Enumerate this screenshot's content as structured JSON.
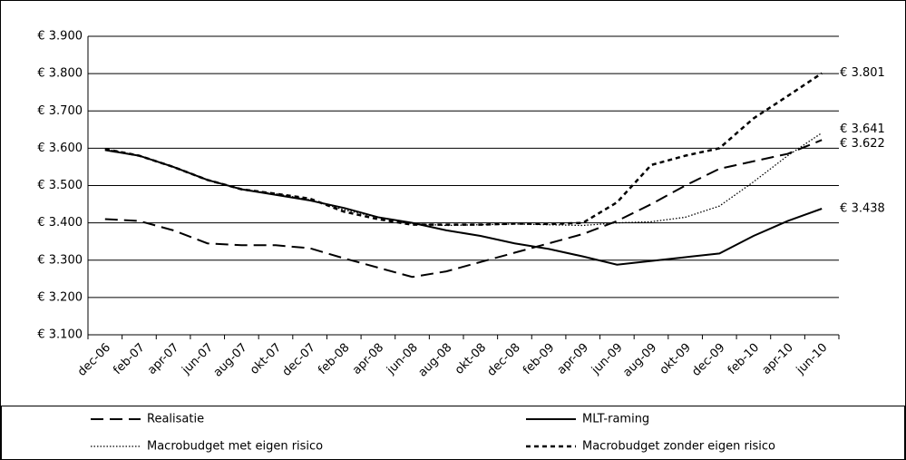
{
  "chart_data": {
    "type": "line",
    "categories": [
      "dec-06",
      "feb-07",
      "apr-07",
      "jun-07",
      "aug-07",
      "okt-07",
      "dec-07",
      "feb-08",
      "apr-08",
      "jun-08",
      "aug-08",
      "okt-08",
      "dec-08",
      "feb-09",
      "apr-09",
      "jun-09",
      "aug-09",
      "okt-09",
      "dec-09",
      "feb-10",
      "apr-10",
      "jun-10"
    ],
    "series": [
      {
        "name": "Realisatie",
        "color": "#000000",
        "dash": "long-dash",
        "values": [
          3410,
          3405,
          3380,
          3345,
          3340,
          3340,
          3332,
          3305,
          3280,
          3255,
          3270,
          3295,
          3320,
          3345,
          3370,
          3405,
          3450,
          3500,
          3545,
          3565,
          3585,
          3622
        ],
        "value_labels": [
          null,
          null,
          null,
          null,
          null,
          null,
          null,
          null,
          null,
          null,
          null,
          null,
          null,
          null,
          null,
          null,
          null,
          null,
          null,
          null,
          null,
          "€ 3.622"
        ]
      },
      {
        "name": "MLT-raming",
        "color": "#000000",
        "dash": "solid",
        "values": [
          3595,
          3580,
          3550,
          3515,
          3490,
          3475,
          3460,
          3440,
          3415,
          3400,
          3380,
          3365,
          3345,
          3330,
          3310,
          3288,
          3298,
          3308,
          3318,
          3365,
          3405,
          3438
        ],
        "value_labels": [
          null,
          null,
          null,
          null,
          null,
          null,
          null,
          null,
          null,
          null,
          null,
          null,
          null,
          null,
          null,
          null,
          null,
          null,
          null,
          null,
          null,
          "€ 3.438"
        ]
      },
      {
        "name": "Macrobudget met eigen risico",
        "color": "#000000",
        "dash": "dotted",
        "values": [
          3598,
          3580,
          3550,
          3515,
          3490,
          3478,
          3462,
          3435,
          3415,
          3398,
          3393,
          3395,
          3397,
          3395,
          3393,
          3400,
          3403,
          3415,
          3445,
          3510,
          3580,
          3641
        ],
        "value_labels": [
          null,
          null,
          null,
          null,
          null,
          null,
          null,
          null,
          null,
          null,
          null,
          null,
          null,
          null,
          null,
          null,
          null,
          null,
          null,
          null,
          null,
          "€ 3.641"
        ]
      },
      {
        "name": "Macrobudget zonder eigen risico",
        "color": "#000000",
        "dash": "short-dash",
        "values": [
          3598,
          3580,
          3550,
          3515,
          3490,
          3478,
          3465,
          3430,
          3410,
          3395,
          3395,
          3395,
          3398,
          3397,
          3400,
          3455,
          3555,
          3580,
          3600,
          3680,
          3740,
          3801
        ],
        "value_labels": [
          null,
          null,
          null,
          null,
          null,
          null,
          null,
          null,
          null,
          null,
          null,
          null,
          null,
          null,
          null,
          null,
          null,
          null,
          null,
          null,
          null,
          "€ 3.801"
        ]
      }
    ],
    "ylim": [
      3100,
      3900
    ],
    "yticks": [
      {
        "value": 3100,
        "label": "€ 3.100"
      },
      {
        "value": 3200,
        "label": "€ 3.200"
      },
      {
        "value": 3300,
        "label": "€ 3.300"
      },
      {
        "value": 3400,
        "label": "€ 3.400"
      },
      {
        "value": 3500,
        "label": "€ 3.500"
      },
      {
        "value": 3600,
        "label": "€ 3.600"
      },
      {
        "value": 3700,
        "label": "€ 3.700"
      },
      {
        "value": 3800,
        "label": "€ 3.800"
      },
      {
        "value": 3900,
        "label": "€ 3.900"
      }
    ],
    "grid": true,
    "legend": "bottom"
  }
}
